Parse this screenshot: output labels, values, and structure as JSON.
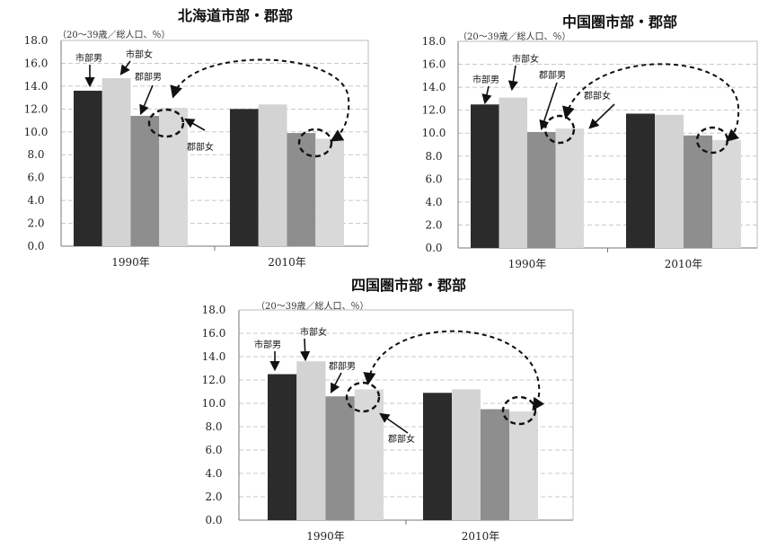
{
  "colors": {
    "city_male": "#2b2b2b",
    "city_female": "#d3d3d3",
    "county_male": "#8e8e8e",
    "county_female": "#d9d9d9",
    "grid": "#c8c8c8",
    "axis": "#777777"
  },
  "chart_data": [
    {
      "type": "bar",
      "title": "北海道市部・郡部",
      "unit_note": "（20～39歳／総人口、％）",
      "categories": [
        "1990年",
        "2010年"
      ],
      "series": [
        {
          "name": "市部男",
          "values": [
            13.6,
            12.0
          ]
        },
        {
          "name": "市部女",
          "values": [
            14.7,
            12.4
          ]
        },
        {
          "name": "郡部男",
          "values": [
            11.4,
            9.9
          ]
        },
        {
          "name": "郡部女",
          "values": [
            12.1,
            9.4
          ]
        }
      ],
      "ylim": [
        0,
        18
      ],
      "yticks": [
        "0.0",
        "2.0",
        "4.0",
        "6.0",
        "8.0",
        "10.0",
        "12.0",
        "14.0",
        "16.0",
        "18.0"
      ],
      "grid": true,
      "annotations": [
        "市部男",
        "市部女",
        "郡部男",
        "郡部女"
      ]
    },
    {
      "type": "bar",
      "title": "中国圏市部・郡部",
      "unit_note": "（20～39歳／総人口、％）",
      "categories": [
        "1990年",
        "2010年"
      ],
      "series": [
        {
          "name": "市部男",
          "values": [
            12.5,
            11.7
          ]
        },
        {
          "name": "市部女",
          "values": [
            13.1,
            11.6
          ]
        },
        {
          "name": "郡部男",
          "values": [
            10.1,
            9.8
          ]
        },
        {
          "name": "郡部女",
          "values": [
            10.4,
            9.4
          ]
        }
      ],
      "ylim": [
        0,
        18
      ],
      "yticks": [
        "0.0",
        "2.0",
        "4.0",
        "6.0",
        "8.0",
        "10.0",
        "12.0",
        "14.0",
        "16.0",
        "18.0"
      ],
      "grid": true,
      "annotations": [
        "市部男",
        "市部女",
        "郡部男",
        "郡部女"
      ]
    },
    {
      "type": "bar",
      "title": "四国圏市部・郡部",
      "unit_note": "（20～39歳／総人口、％）",
      "categories": [
        "1990年",
        "2010年"
      ],
      "series": [
        {
          "name": "市部男",
          "values": [
            12.5,
            10.9
          ]
        },
        {
          "name": "市部女",
          "values": [
            13.6,
            11.2
          ]
        },
        {
          "name": "郡部男",
          "values": [
            10.6,
            9.5
          ]
        },
        {
          "name": "郡部女",
          "values": [
            11.2,
            9.3
          ]
        }
      ],
      "ylim": [
        0,
        18
      ],
      "yticks": [
        "0.0",
        "2.0",
        "4.0",
        "6.0",
        "8.0",
        "10.0",
        "12.0",
        "14.0",
        "16.0",
        "18.0"
      ],
      "grid": true,
      "annotations": [
        "市部男",
        "市部女",
        "郡部男",
        "郡部女"
      ]
    }
  ]
}
